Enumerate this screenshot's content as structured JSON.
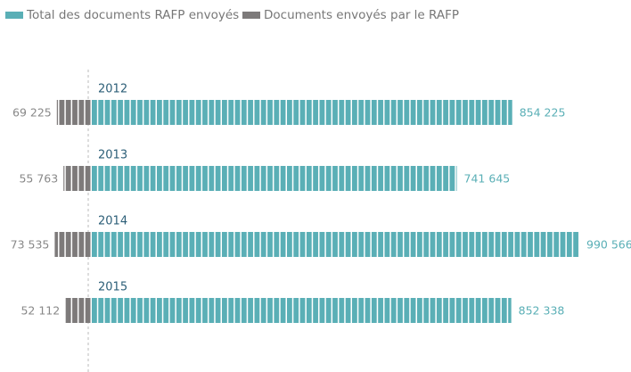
{
  "chart_data": {
    "type": "bar",
    "categories": [
      "2012",
      "2013",
      "2014",
      "2015"
    ],
    "series": [
      {
        "name": "Total des documents RAFP envoyés",
        "color": "#5aafb6",
        "values": [
          854225,
          741645,
          990566,
          852338
        ],
        "value_labels": [
          "854 225",
          "741 645",
          "990 566",
          "852 338"
        ]
      },
      {
        "name": "Documents envoyés par le RAFP",
        "color": "#7d7a7a",
        "values": [
          69225,
          55763,
          73535,
          52112
        ],
        "value_labels": [
          "69 225",
          "55 763",
          "73 535",
          "52 112"
        ]
      }
    ]
  }
}
